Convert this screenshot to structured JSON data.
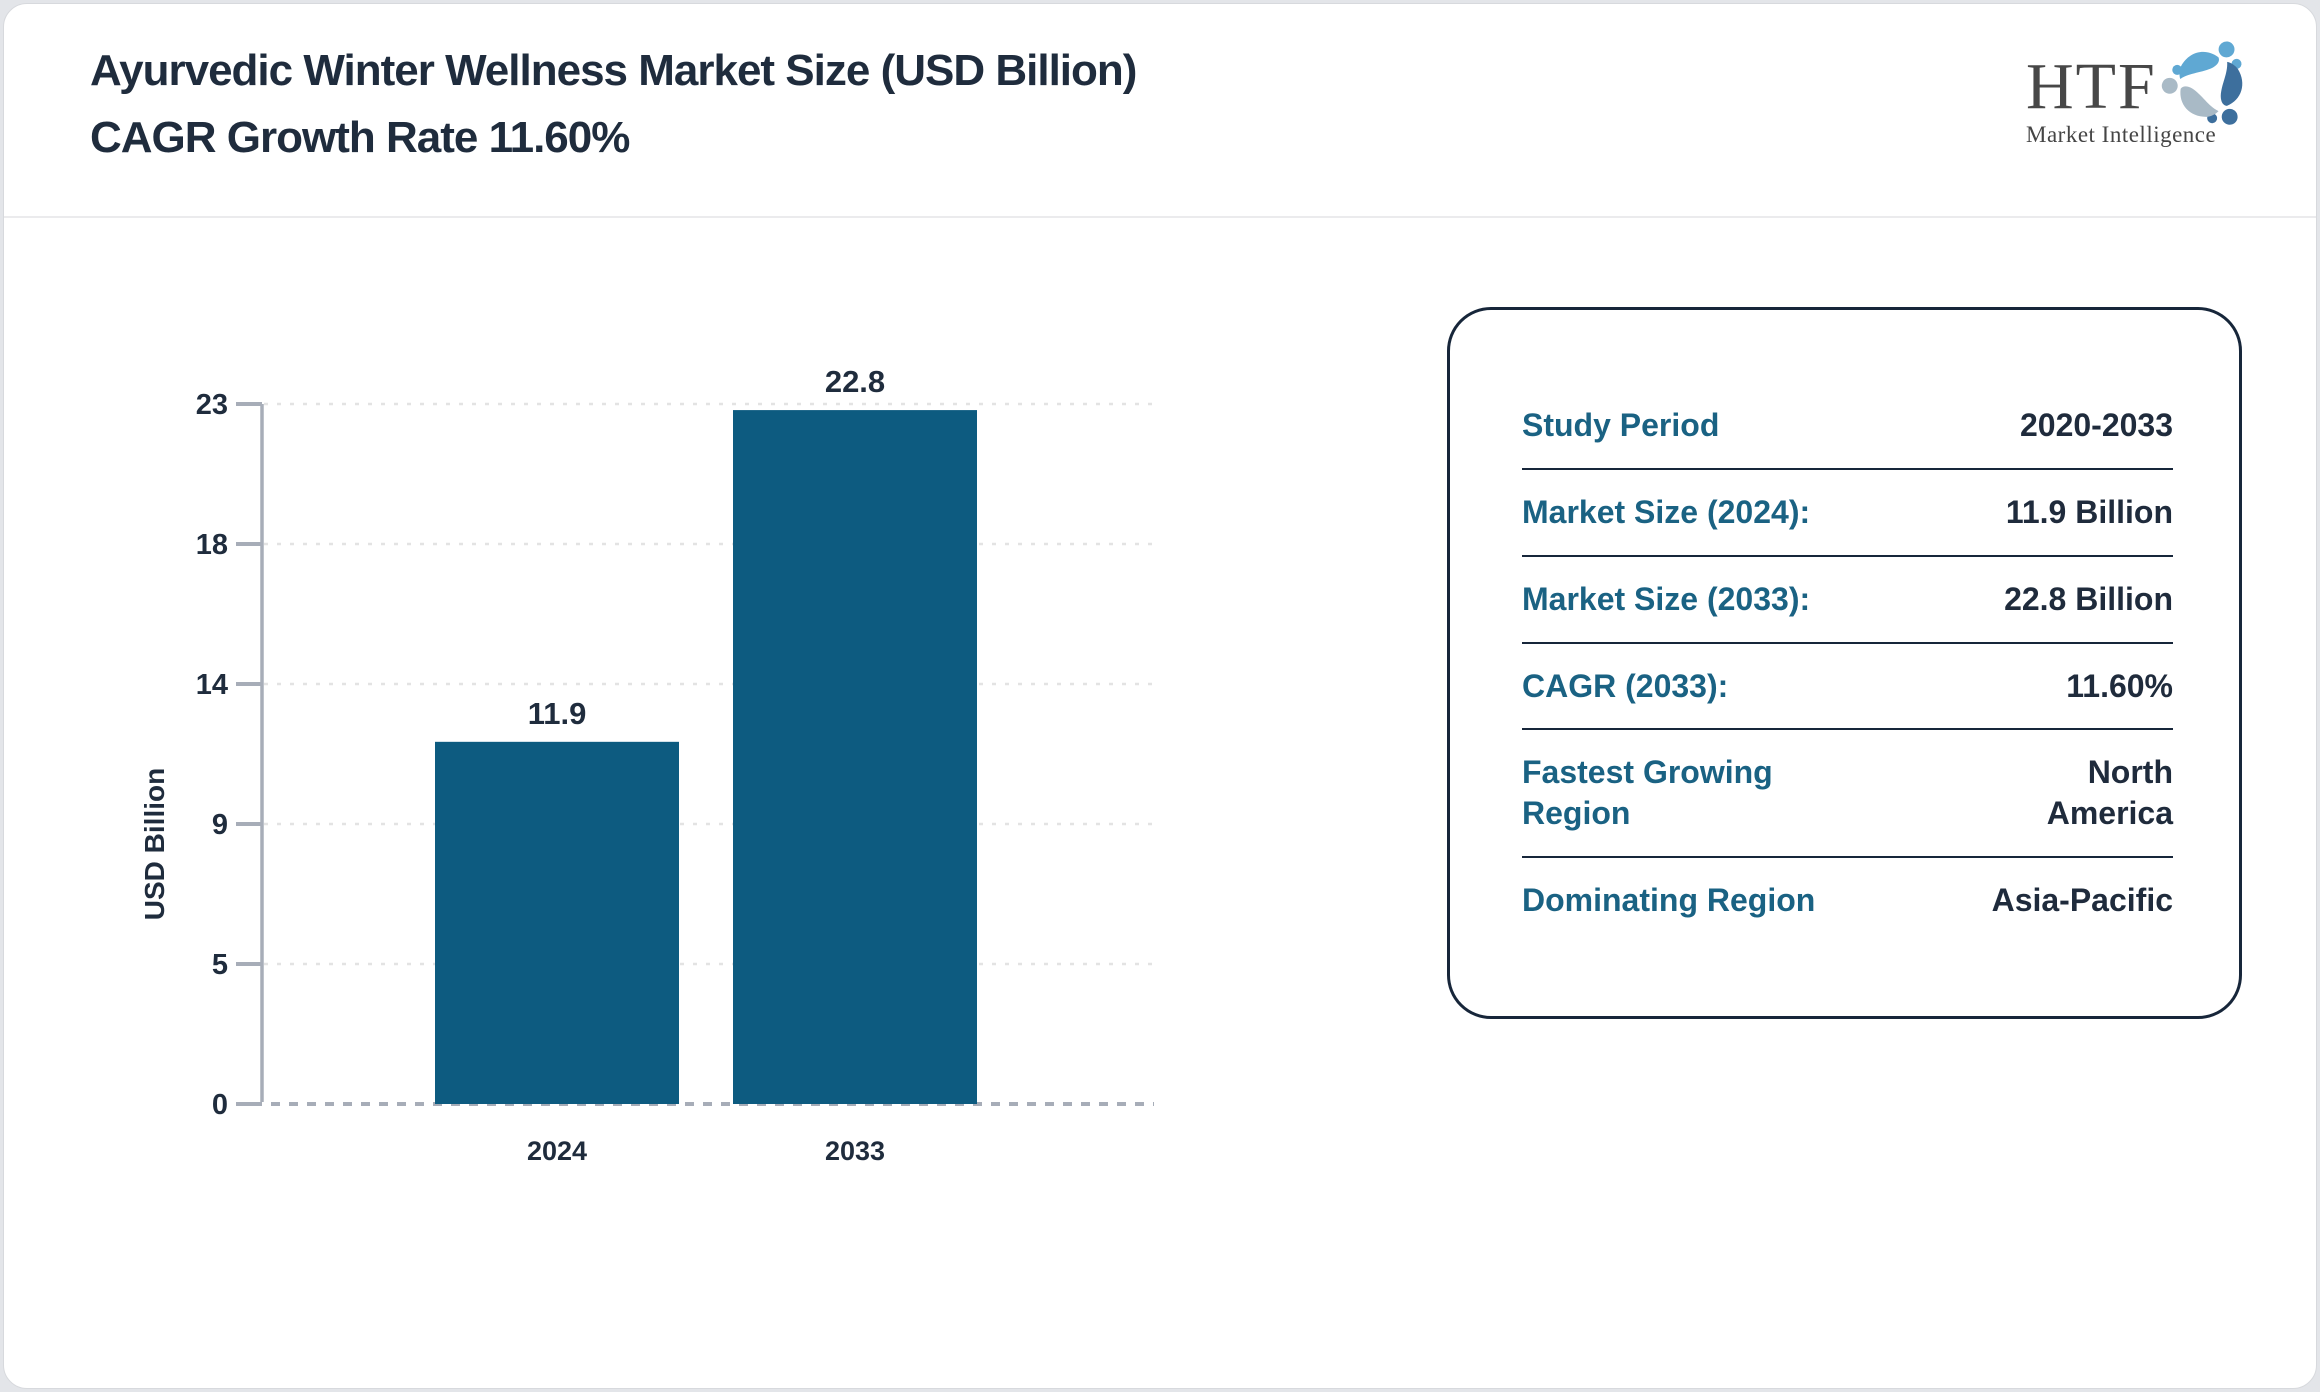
{
  "header": {
    "title": "Ayurvedic Winter Wellness Market Size (USD Billion) CAGR Growth Rate 11.60%",
    "logo": {
      "name": "HTF",
      "tagline": "Market Intelligence"
    }
  },
  "chart_data": {
    "type": "bar",
    "title": "Ayurvedic Winter Wellness Market Size (USD Billion) CAGR Growth Rate 11.60%",
    "categories": [
      "2024",
      "2033"
    ],
    "values": [
      11.9,
      22.8
    ],
    "bar_value_labels": [
      "11.9",
      "22.8"
    ],
    "xlabel": "",
    "ylabel": "USD Billion",
    "ylim": [
      0,
      23
    ],
    "yticks": [
      0,
      5,
      9,
      14,
      18,
      23
    ],
    "yticks_equally_spaced": true,
    "grid": "horizontal dashed gridlines at each y tick",
    "legend": "none",
    "bar_color": "#0d5b80"
  },
  "panel": {
    "rows": [
      {
        "label": "Study Period",
        "value": "2020-2033"
      },
      {
        "label": "Market Size (2024):",
        "value": "11.9 Billion"
      },
      {
        "label": "Market Size (2033):",
        "value": "22.8 Billion"
      },
      {
        "label": "CAGR (2033):",
        "value": "11.60%"
      },
      {
        "label": "Fastest Growing Region",
        "value": "North America"
      },
      {
        "label": "Dominating Region",
        "value": "Asia-Pacific"
      }
    ]
  },
  "colors": {
    "page_background": "#e3e5e9",
    "card_background": "#ffffff",
    "title_text": "#1f2c3d",
    "bar_fill": "#0d5b80",
    "axis_line": "#a7adb8",
    "gridline": "#e3e3e3",
    "tick_text": "#1f2c3d",
    "panel_border": "#17263a",
    "panel_label": "#1a6283",
    "panel_value": "#1f2b3c",
    "logo_blue_light": "#5fa8d3",
    "logo_blue_steel": "#3d6f9d",
    "logo_gray": "#a9bac6"
  }
}
